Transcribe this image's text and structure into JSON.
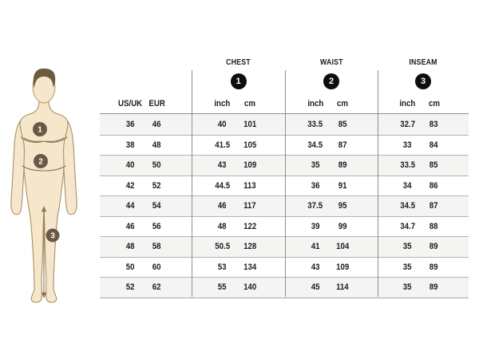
{
  "figure": {
    "description": "front-facing male body illustration with measurement markers",
    "badges": [
      {
        "number": "1",
        "meaning": "chest"
      },
      {
        "number": "2",
        "meaning": "waist"
      },
      {
        "number": "3",
        "meaning": "inseam"
      }
    ],
    "colors": {
      "skin": "#f6e7cc",
      "outline": "#a98e63",
      "hair": "#6d5b3c",
      "badge": "#6b5945",
      "measure_line": "#8d7550"
    }
  },
  "table": {
    "size_columns": [
      "US/UK",
      "EUR"
    ],
    "groups": [
      {
        "label": "CHEST",
        "badge": "1",
        "units": [
          "inch",
          "cm"
        ]
      },
      {
        "label": "WAIST",
        "badge": "2",
        "units": [
          "inch",
          "cm"
        ]
      },
      {
        "label": "INSEAM",
        "badge": "3",
        "units": [
          "inch",
          "cm"
        ]
      }
    ],
    "colors": {
      "stripe": "#f4f4f2",
      "grid": "#8f8f8f",
      "row_border": "#b3b3b3",
      "badge": "#0d0d0d",
      "text": "#1c1c1c"
    }
  },
  "chart_data": {
    "type": "table",
    "title": "Size chart with chest, waist and inseam measurements",
    "columns": [
      "US/UK",
      "EUR",
      "CHEST inch",
      "CHEST cm",
      "WAIST inch",
      "WAIST cm",
      "INSEAM inch",
      "INSEAM cm"
    ],
    "rows": [
      [
        "36",
        "46",
        "40",
        "101",
        "33.5",
        "85",
        "32.7",
        "83"
      ],
      [
        "38",
        "48",
        "41.5",
        "105",
        "34.5",
        "87",
        "33",
        "84"
      ],
      [
        "40",
        "50",
        "43",
        "109",
        "35",
        "89",
        "33.5",
        "85"
      ],
      [
        "42",
        "52",
        "44.5",
        "113",
        "36",
        "91",
        "34",
        "86"
      ],
      [
        "44",
        "54",
        "46",
        "117",
        "37.5",
        "95",
        "34.5",
        "87"
      ],
      [
        "46",
        "56",
        "48",
        "122",
        "39",
        "99",
        "34.7",
        "88"
      ],
      [
        "48",
        "58",
        "50.5",
        "128",
        "41",
        "104",
        "35",
        "89"
      ],
      [
        "50",
        "60",
        "53",
        "134",
        "43",
        "109",
        "35",
        "89"
      ],
      [
        "52",
        "62",
        "55",
        "140",
        "45",
        "114",
        "35",
        "89"
      ]
    ]
  }
}
